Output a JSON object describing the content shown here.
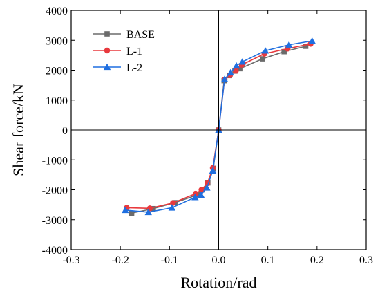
{
  "chart_data": {
    "type": "line",
    "title": "",
    "xlabel": "Rotation/rad",
    "ylabel": "Shear force/kN",
    "xlim": [
      -0.3,
      0.3
    ],
    "ylim": [
      -4000,
      4000
    ],
    "xticks": [
      -0.3,
      -0.2,
      -0.1,
      0.0,
      0.1,
      0.2,
      0.3
    ],
    "xtick_labels": [
      "-0.3",
      "-0.2",
      "-0.1",
      "0.0",
      "0.1",
      "0.2",
      "0.3"
    ],
    "yticks": [
      -4000,
      -3000,
      -2000,
      -1000,
      0,
      1000,
      2000,
      3000,
      4000
    ],
    "ytick_labels": [
      "-4000",
      "-3000",
      "-2000",
      "-1000",
      "0",
      "1000",
      "2000",
      "3000",
      "4000"
    ],
    "grid": false,
    "zero_lines": true,
    "legend_position": "top-left",
    "series": [
      {
        "name": "BASE",
        "color": "#6b6b6b",
        "marker": "square",
        "x": [
          -0.177,
          -0.133,
          -0.089,
          -0.043,
          -0.033,
          -0.022,
          -0.011,
          0.0,
          0.011,
          0.022,
          0.033,
          0.043,
          0.089,
          0.133,
          0.177
        ],
        "y": [
          -2780,
          -2630,
          -2430,
          -2170,
          -2000,
          -1770,
          -1280,
          0,
          1650,
          1820,
          1970,
          2050,
          2380,
          2620,
          2800
        ]
      },
      {
        "name": "L-1",
        "color": "#e8393d",
        "marker": "circle",
        "x": [
          -0.187,
          -0.14,
          -0.093,
          -0.047,
          -0.035,
          -0.023,
          -0.012,
          0.0,
          0.012,
          0.023,
          0.035,
          0.047,
          0.093,
          0.14,
          0.187
        ],
        "y": [
          -2600,
          -2620,
          -2440,
          -2130,
          -2000,
          -1780,
          -1270,
          0,
          1690,
          1830,
          1980,
          2180,
          2550,
          2720,
          2880
        ]
      },
      {
        "name": "L-2",
        "color": "#1f6fe0",
        "marker": "triangle",
        "x": [
          -0.19,
          -0.143,
          -0.095,
          -0.048,
          -0.036,
          -0.024,
          -0.012,
          0.0,
          0.012,
          0.024,
          0.036,
          0.048,
          0.095,
          0.143,
          0.19
        ],
        "y": [
          -2680,
          -2750,
          -2600,
          -2250,
          -2170,
          -1930,
          -1360,
          0,
          1700,
          1920,
          2150,
          2280,
          2650,
          2850,
          2980
        ]
      }
    ]
  }
}
